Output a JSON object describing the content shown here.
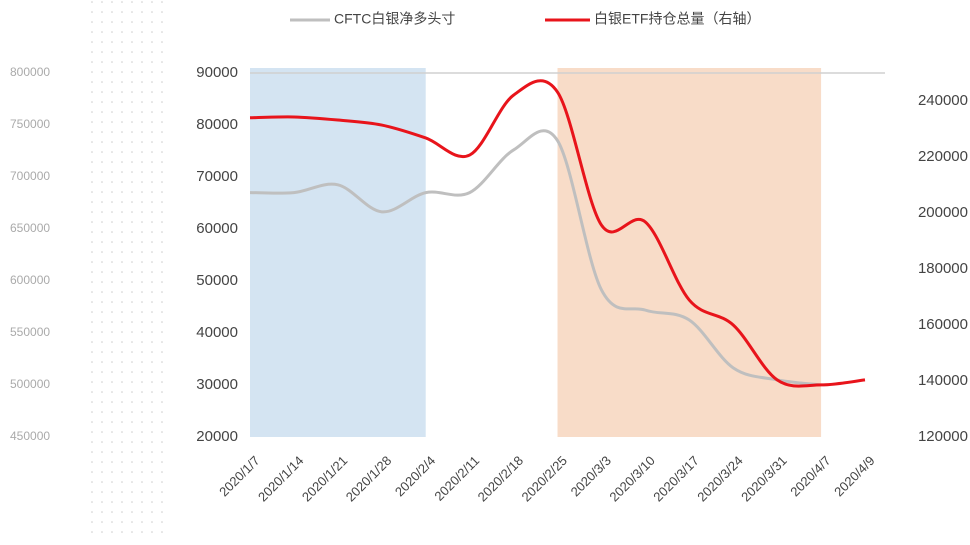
{
  "chart_data": {
    "type": "line",
    "categories": [
      "2020/1/7",
      "2020/1/14",
      "2020/1/21",
      "2020/1/28",
      "2020/2/4",
      "2020/2/11",
      "2020/2/18",
      "2020/2/25",
      "2020/3/3",
      "2020/3/10",
      "2020/3/17",
      "2020/3/24",
      "2020/3/31",
      "2020/4/7",
      "2020/4/9"
    ],
    "series": [
      {
        "name": "CFTC白银净多头寸",
        "color": "#bfbfbf",
        "values": [
          67000,
          67000,
          68500,
          63300,
          67000,
          67000,
          75200,
          77000,
          48300,
          44400,
          42500,
          33300,
          31000,
          30000,
          null
        ]
      },
      {
        "name": "白银ETF持仓总量（右轴）",
        "color": "#e8141b",
        "axis": "y2",
        "values": [
          234000,
          234300,
          233200,
          231400,
          226800,
          220700,
          242100,
          243200,
          195700,
          196800,
          168900,
          160000,
          140400,
          138600,
          140400
        ]
      }
    ],
    "ylim": [
      20000,
      90000
    ],
    "yticks": [
      20000,
      30000,
      40000,
      50000,
      60000,
      70000,
      80000,
      90000
    ],
    "y2lim": [
      120000,
      250000
    ],
    "y2ticks": [
      120000,
      140000,
      160000,
      180000,
      200000,
      220000,
      240000
    ],
    "ghost_ticks": [
      450000,
      500000,
      550000,
      600000,
      650000,
      700000,
      750000,
      800000
    ],
    "shaded_ranges": [
      {
        "from": "2020/1/7",
        "to": "2020/2/4",
        "color": "#d4e4f2"
      },
      {
        "from": "2020/2/25",
        "to": "2020/4/7",
        "color": "#f8dcc8"
      }
    ],
    "legend": "top"
  }
}
